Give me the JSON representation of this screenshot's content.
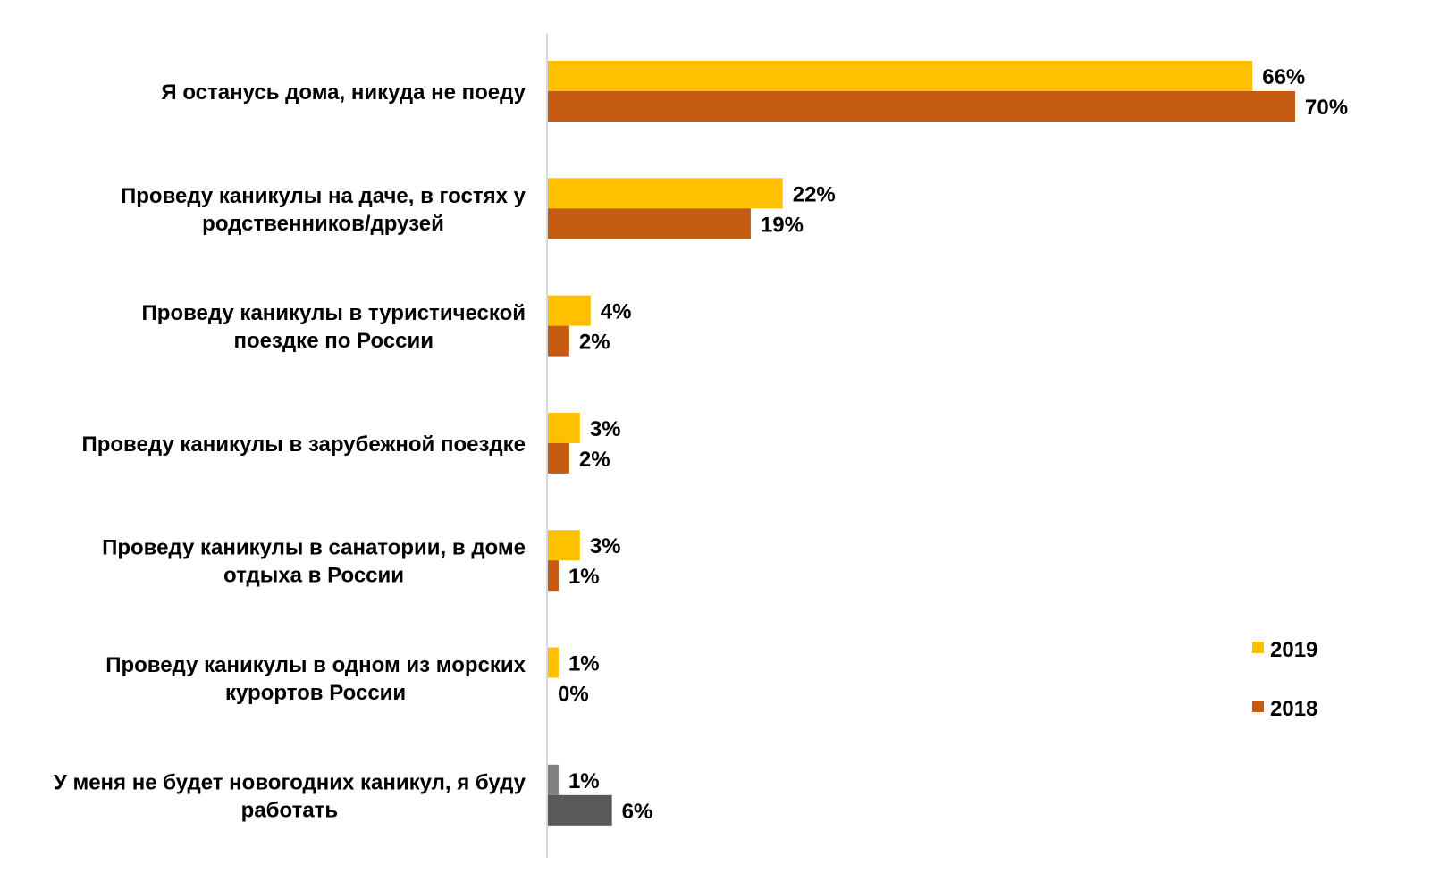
{
  "chart_data": {
    "type": "bar",
    "orientation": "horizontal",
    "categories": [
      [
        "Я останусь дома, никуда не поеду"
      ],
      [
        "Проведу каникулы на даче, в гостях у",
        "родственников/друзей"
      ],
      [
        "Проведу каникулы в туристической",
        "поездке по России"
      ],
      [
        "Проведу каникулы в зарубежной поездке"
      ],
      [
        "Проведу каникулы в санатории, в доме",
        "отдыха в России"
      ],
      [
        "Проведу каникулы в одном из морских",
        "курортов России"
      ],
      [
        "У меня не будет новогодних каникул, я буду",
        "работать"
      ]
    ],
    "series": [
      {
        "name": "2019",
        "color": "#FFC000",
        "values": [
          66,
          22,
          4,
          3,
          3,
          1,
          1
        ],
        "labels": [
          "66%",
          "22%",
          "4%",
          "3%",
          "3%",
          "1%",
          "1%"
        ]
      },
      {
        "name": "2018",
        "color": "#C55A11",
        "values": [
          70,
          19,
          2,
          2,
          1,
          0,
          6
        ],
        "labels": [
          "70%",
          "19%",
          "2%",
          "2%",
          "1%",
          "0%",
          "6%"
        ]
      }
    ],
    "highlight_colors": {
      "last_category_2019": "#808080",
      "last_category_2018": "#595959"
    },
    "xlim": [
      0,
      70
    ],
    "grid": false,
    "legend": {
      "placement": "right",
      "entries": [
        "2019",
        "2018"
      ]
    },
    "unit": "%"
  }
}
